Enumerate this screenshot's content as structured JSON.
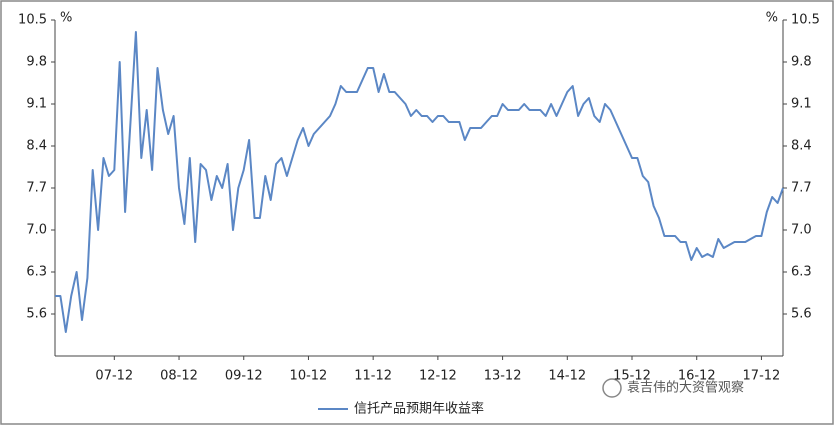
{
  "chart_data": {
    "type": "line",
    "y_label": "%",
    "y2_label": "%",
    "categories": [
      null,
      null,
      null,
      null,
      null,
      null,
      null,
      null,
      null,
      null,
      null,
      "07-12",
      null,
      null,
      null,
      null,
      null,
      null,
      null,
      null,
      null,
      null,
      null,
      "08-12",
      null,
      null,
      null,
      null,
      null,
      null,
      null,
      null,
      null,
      null,
      null,
      "09-12",
      null,
      null,
      null,
      null,
      null,
      null,
      null,
      null,
      null,
      null,
      null,
      "10-12",
      null,
      null,
      null,
      null,
      null,
      null,
      null,
      null,
      null,
      null,
      null,
      "11-12",
      null,
      null,
      null,
      null,
      null,
      null,
      null,
      null,
      null,
      null,
      null,
      "12-12",
      null,
      null,
      null,
      null,
      null,
      null,
      null,
      null,
      null,
      null,
      null,
      "13-12",
      null,
      null,
      null,
      null,
      null,
      null,
      null,
      null,
      null,
      null,
      null,
      "14-12",
      null,
      null,
      null,
      null,
      null,
      null,
      null,
      null,
      null,
      null,
      null,
      "15-12",
      null,
      null,
      null,
      null,
      null,
      null,
      null,
      null,
      null,
      null,
      null,
      "16-12",
      null,
      null,
      null,
      null,
      null,
      null,
      null,
      null,
      null,
      null,
      null,
      "17-12",
      null,
      null,
      null,
      null
    ],
    "series": [
      {
        "name": "信托产品预期年收益率",
        "color": "#5b87c5",
        "axis": "y",
        "values": [
          5.9,
          5.9,
          5.3,
          5.9,
          6.3,
          5.5,
          6.2,
          8.0,
          7.0,
          8.2,
          7.9,
          8.0,
          9.8,
          7.3,
          8.8,
          10.3,
          8.2,
          9.0,
          8.0,
          9.7,
          9.0,
          8.6,
          8.9,
          7.7,
          7.1,
          8.2,
          6.8,
          8.1,
          8.0,
          7.5,
          7.9,
          7.7,
          8.1,
          7.0,
          7.7,
          8.0,
          8.5,
          7.2,
          7.2,
          7.9,
          7.5,
          8.1,
          8.2,
          7.9,
          8.2,
          8.5,
          8.7,
          8.4,
          8.6,
          8.7,
          8.8,
          8.9,
          9.1,
          9.4,
          9.3,
          9.3,
          9.3,
          9.5,
          9.7,
          9.7,
          9.3,
          9.6,
          9.3,
          9.3,
          9.2,
          9.1,
          8.9,
          9.0,
          8.9,
          8.9,
          8.8,
          8.9,
          8.9,
          8.8,
          8.8,
          8.8,
          8.5,
          8.7,
          8.7,
          8.7,
          8.8,
          8.9,
          8.9,
          9.1,
          9.0,
          9.0,
          9.0,
          9.1,
          9.0,
          9.0,
          9.0,
          8.9,
          9.1,
          8.9,
          9.1,
          9.3,
          9.4,
          8.9,
          9.1,
          9.2,
          8.9,
          8.8,
          9.1,
          9.0,
          8.8,
          8.6,
          8.4,
          8.2,
          8.2,
          7.9,
          7.8,
          7.4,
          7.2,
          6.9,
          6.9,
          6.9,
          6.8,
          6.8,
          6.5,
          6.7,
          6.55,
          6.6,
          6.55,
          6.85,
          6.7,
          6.75,
          6.8,
          6.8,
          6.8,
          6.85,
          6.9,
          6.9,
          7.3,
          7.55,
          7.45,
          7.7
        ]
      }
    ],
    "ylim": [
      4.9,
      10.5
    ],
    "yticks": [
      5.6,
      6.3,
      {
        "value": 7,
        "label": "7.0"
      },
      7.7,
      8.4,
      9.1,
      9.8,
      10.5
    ],
    "y2lim": [
      4.9,
      10.5
    ],
    "y2ticks": [
      5.6,
      6.3,
      {
        "value": 7,
        "label": "7.0"
      },
      7.7,
      8.4,
      9.1,
      9.8,
      10.5
    ],
    "grid": false,
    "legend": "bottom",
    "watermark": "袁吉伟的大资管观察"
  }
}
